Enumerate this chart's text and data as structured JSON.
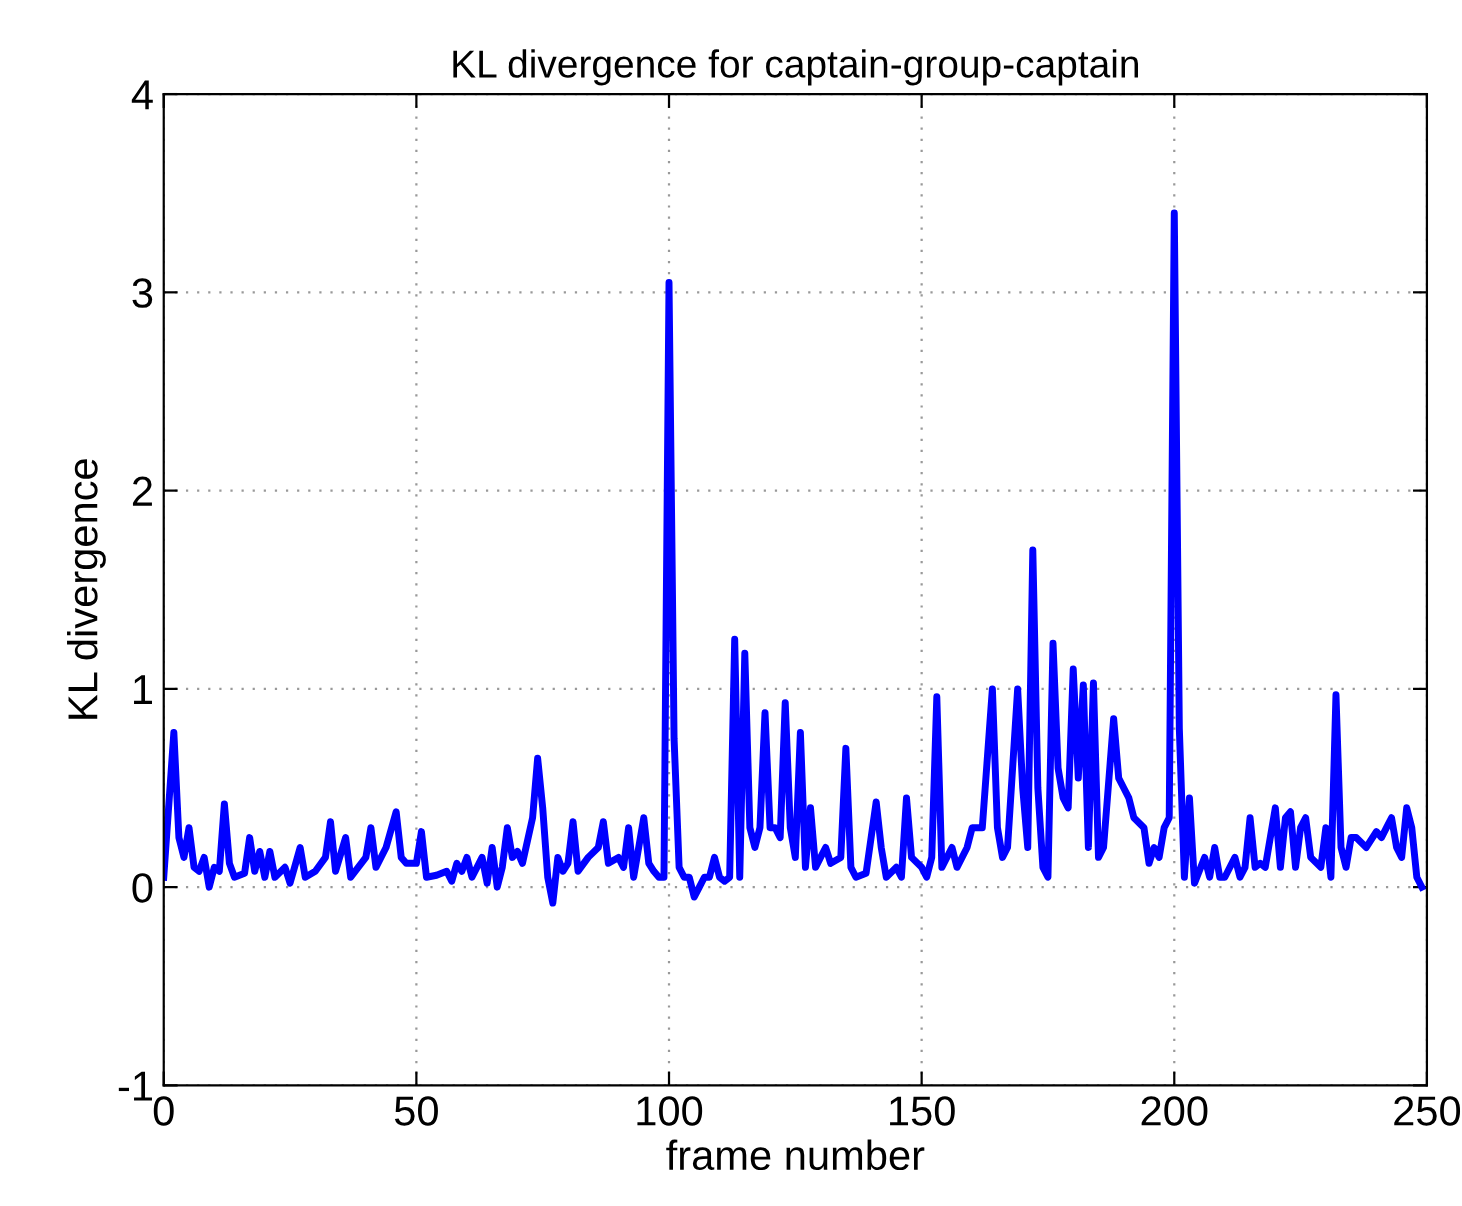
{
  "chart_data": {
    "type": "line",
    "title": "KL divergence for captain-group-captain",
    "xlabel": "frame number",
    "ylabel": "KL divergence",
    "x": [
      0,
      2,
      3,
      4,
      5,
      6,
      7,
      8,
      9,
      10,
      11,
      12,
      13,
      14,
      16,
      17,
      18,
      19,
      20,
      21,
      22,
      24,
      25,
      27,
      28,
      30,
      32,
      33,
      34,
      36,
      37,
      40,
      41,
      42,
      44,
      46,
      47,
      48,
      50,
      51,
      52,
      54,
      56,
      57,
      58,
      59,
      60,
      61,
      63,
      64,
      65,
      66,
      67,
      68,
      69,
      70,
      71,
      73,
      74,
      75,
      76,
      77,
      78,
      79,
      80,
      81,
      82,
      84,
      86,
      87,
      88,
      90,
      91,
      92,
      93,
      95,
      96,
      97,
      98,
      99,
      100,
      101,
      102,
      103,
      104,
      105,
      106,
      107,
      108,
      109,
      110,
      111,
      112,
      113,
      114,
      115,
      116,
      117,
      118,
      119,
      120,
      121,
      122,
      123,
      124,
      125,
      126,
      127,
      128,
      129,
      130,
      131,
      132,
      134,
      135,
      136,
      137,
      139,
      141,
      142,
      143,
      145,
      146,
      147,
      148,
      150,
      151,
      152,
      153,
      154,
      156,
      157,
      159,
      160,
      162,
      164,
      165,
      166,
      167,
      168,
      169,
      170,
      171,
      172,
      173,
      174,
      175,
      176,
      177,
      178,
      179,
      180,
      181,
      182,
      183,
      184,
      185,
      186,
      188,
      189,
      190,
      191,
      192,
      194,
      195,
      196,
      197,
      198,
      199,
      200,
      201,
      202,
      203,
      204,
      206,
      207,
      208,
      209,
      210,
      212,
      213,
      214,
      215,
      216,
      217,
      218,
      219,
      220,
      221,
      222,
      223,
      224,
      225,
      226,
      227,
      229,
      230,
      231,
      232,
      233,
      234,
      235,
      236,
      238,
      240,
      241,
      242,
      243,
      244,
      245,
      246,
      247,
      248,
      249
    ],
    "series": [
      {
        "color": "#0000ff",
        "values": [
          0.05,
          0.78,
          0.25,
          0.15,
          0.3,
          0.1,
          0.08,
          0.15,
          0.0,
          0.1,
          0.08,
          0.42,
          0.12,
          0.05,
          0.07,
          0.25,
          0.08,
          0.18,
          0.05,
          0.18,
          0.05,
          0.1,
          0.02,
          0.2,
          0.05,
          0.08,
          0.15,
          0.33,
          0.08,
          0.25,
          0.05,
          0.15,
          0.3,
          0.1,
          0.2,
          0.38,
          0.15,
          0.12,
          0.12,
          0.28,
          0.05,
          0.06,
          0.08,
          0.03,
          0.12,
          0.08,
          0.15,
          0.05,
          0.15,
          0.02,
          0.2,
          0.0,
          0.1,
          0.3,
          0.15,
          0.18,
          0.12,
          0.35,
          0.65,
          0.4,
          0.05,
          -0.08,
          0.15,
          0.08,
          0.12,
          0.33,
          0.08,
          0.15,
          0.2,
          0.33,
          0.12,
          0.15,
          0.1,
          0.3,
          0.05,
          0.35,
          0.12,
          0.08,
          0.05,
          0.05,
          3.05,
          0.75,
          0.1,
          0.05,
          0.05,
          -0.05,
          0.0,
          0.05,
          0.05,
          0.15,
          0.05,
          0.03,
          0.05,
          1.25,
          0.05,
          1.18,
          0.3,
          0.2,
          0.3,
          0.88,
          0.3,
          0.3,
          0.25,
          0.93,
          0.3,
          0.15,
          0.78,
          0.1,
          0.4,
          0.1,
          0.15,
          0.2,
          0.12,
          0.15,
          0.7,
          0.1,
          0.05,
          0.07,
          0.43,
          0.2,
          0.05,
          0.1,
          0.05,
          0.45,
          0.15,
          0.1,
          0.05,
          0.15,
          0.96,
          0.1,
          0.2,
          0.1,
          0.2,
          0.3,
          0.3,
          1.0,
          0.3,
          0.15,
          0.2,
          0.6,
          1.0,
          0.5,
          0.2,
          1.7,
          0.5,
          0.1,
          0.05,
          1.23,
          0.6,
          0.45,
          0.4,
          1.1,
          0.55,
          1.02,
          0.2,
          1.03,
          0.15,
          0.2,
          0.85,
          0.55,
          0.5,
          0.45,
          0.35,
          0.3,
          0.12,
          0.2,
          0.15,
          0.3,
          0.35,
          3.4,
          0.8,
          0.05,
          0.45,
          0.02,
          0.15,
          0.05,
          0.2,
          0.05,
          0.05,
          0.15,
          0.05,
          0.1,
          0.35,
          0.1,
          0.12,
          0.1,
          0.25,
          0.4,
          0.1,
          0.35,
          0.38,
          0.1,
          0.3,
          0.35,
          0.15,
          0.1,
          0.3,
          0.05,
          0.97,
          0.2,
          0.1,
          0.25,
          0.25,
          0.2,
          0.28,
          0.25,
          0.3,
          0.35,
          0.2,
          0.15,
          0.4,
          0.3,
          0.05,
          0.0
        ]
      }
    ],
    "xlim": [
      0,
      250
    ],
    "ylim": [
      -1,
      4
    ],
    "xticks": [
      0,
      50,
      100,
      150,
      200,
      250
    ],
    "yticks": [
      -1,
      0,
      1,
      2,
      3,
      4
    ],
    "grid": true,
    "marker": "none",
    "line_style": "solid"
  }
}
